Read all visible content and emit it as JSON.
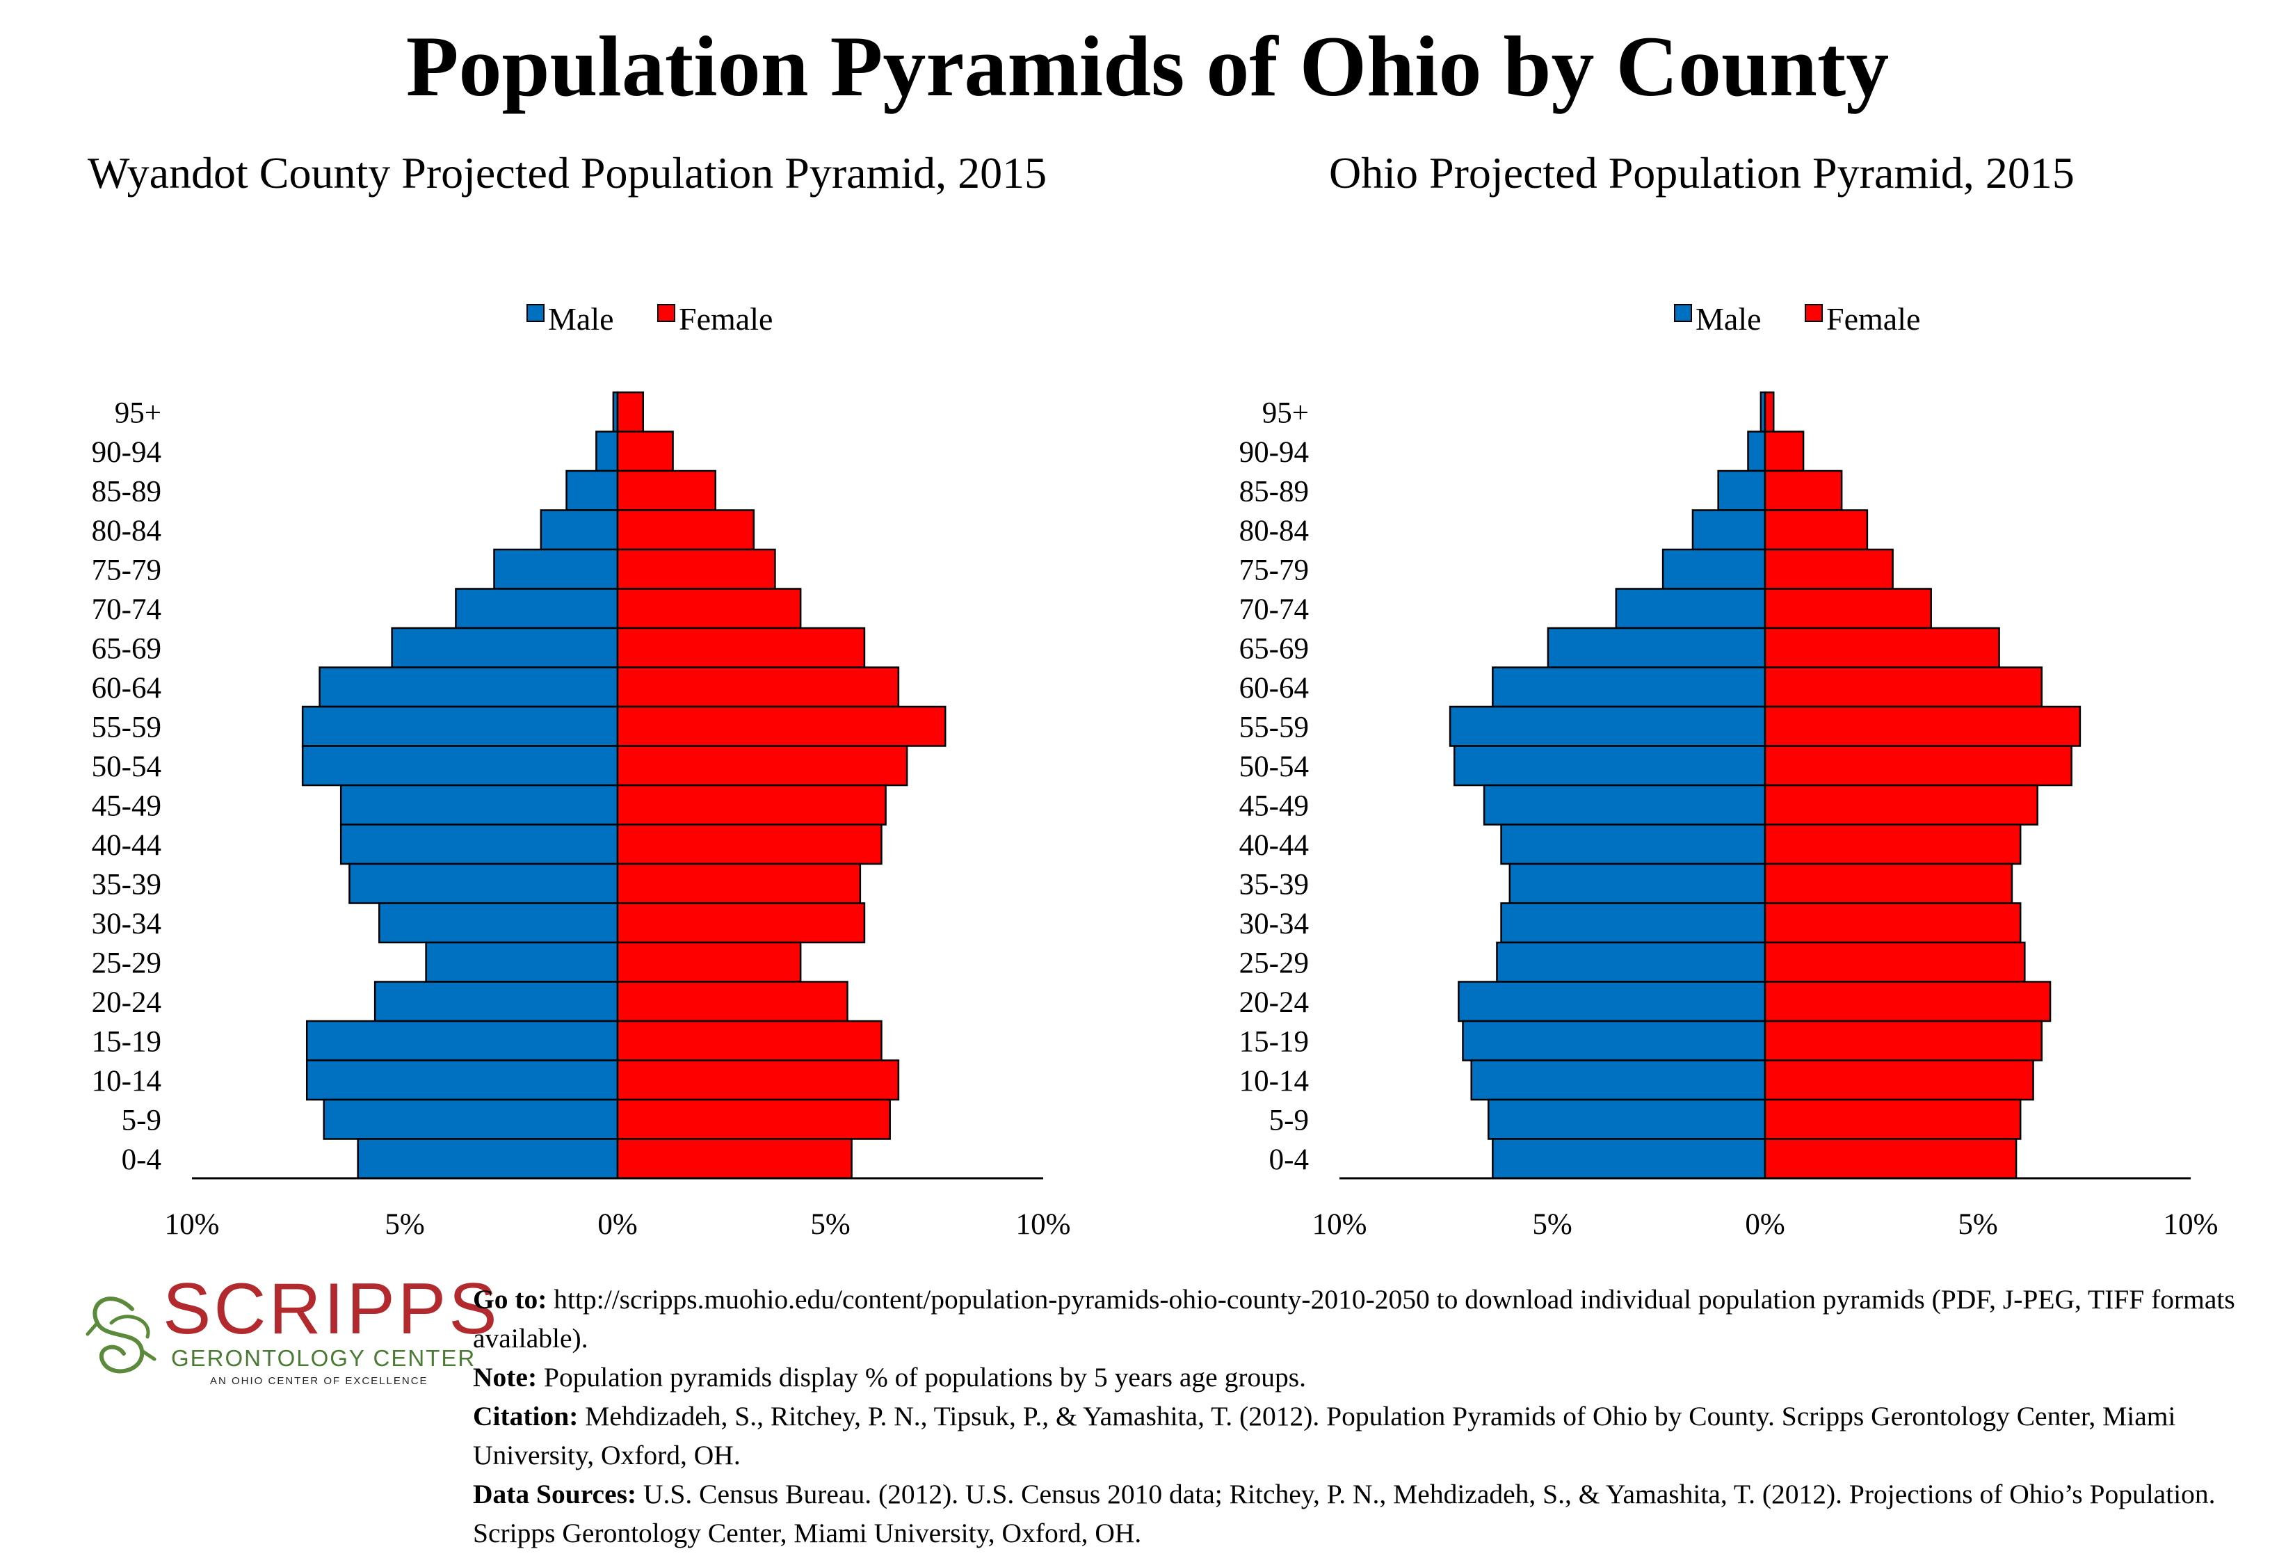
{
  "main_title": "Population Pyramids of Ohio by County",
  "legend": {
    "male": "Male",
    "female": "Female"
  },
  "colors": {
    "male": "#0070c0",
    "female": "#ff0000",
    "outline": "#000000"
  },
  "x_tick_labels": [
    "10%",
    "5%",
    "0%",
    "5%",
    "10%"
  ],
  "chart_data": [
    {
      "type": "bar",
      "orientation": "horizontal-pyramid",
      "title": "Wyandot County Projected Population Pyramid, 2015",
      "categories": [
        "95+",
        "90-94",
        "85-89",
        "80-84",
        "75-79",
        "70-74",
        "65-69",
        "60-64",
        "55-59",
        "50-54",
        "45-49",
        "40-44",
        "35-39",
        "30-34",
        "25-29",
        "20-24",
        "15-19",
        "10-14",
        "5-9",
        "0-4"
      ],
      "series": [
        {
          "name": "Male",
          "values": [
            0.1,
            0.5,
            1.2,
            1.8,
            2.9,
            3.8,
            5.3,
            7.0,
            7.4,
            7.4,
            6.5,
            6.5,
            6.3,
            5.6,
            4.5,
            5.7,
            7.3,
            7.3,
            6.9,
            6.1
          ]
        },
        {
          "name": "Female",
          "values": [
            0.6,
            1.3,
            2.3,
            3.2,
            3.7,
            4.3,
            5.8,
            6.6,
            7.7,
            6.8,
            6.3,
            6.2,
            5.7,
            5.8,
            4.3,
            5.4,
            6.2,
            6.6,
            6.4,
            5.5
          ]
        }
      ],
      "xlim": [
        -10,
        10
      ],
      "x_ticks": [
        -10,
        -5,
        0,
        5,
        10
      ],
      "legend_position": "top-center",
      "grid": false
    },
    {
      "type": "bar",
      "orientation": "horizontal-pyramid",
      "title": "Ohio Projected Population Pyramid, 2015",
      "categories": [
        "95+",
        "90-94",
        "85-89",
        "80-84",
        "75-79",
        "70-74",
        "65-69",
        "60-64",
        "55-59",
        "50-54",
        "45-49",
        "40-44",
        "35-39",
        "30-34",
        "25-29",
        "20-24",
        "15-19",
        "10-14",
        "5-9",
        "0-4"
      ],
      "series": [
        {
          "name": "Male",
          "values": [
            0.1,
            0.4,
            1.1,
            1.7,
            2.4,
            3.5,
            5.1,
            6.4,
            7.4,
            7.3,
            6.6,
            6.2,
            6.0,
            6.2,
            6.3,
            7.2,
            7.1,
            6.9,
            6.5,
            6.4
          ]
        },
        {
          "name": "Female",
          "values": [
            0.2,
            0.9,
            1.8,
            2.4,
            3.0,
            3.9,
            5.5,
            6.5,
            7.4,
            7.2,
            6.4,
            6.0,
            5.8,
            6.0,
            6.1,
            6.7,
            6.5,
            6.3,
            6.0,
            5.9
          ]
        }
      ],
      "xlim": [
        -10,
        10
      ],
      "x_ticks": [
        -10,
        -5,
        0,
        5,
        10
      ],
      "legend_position": "top-center",
      "grid": false
    }
  ],
  "footer": {
    "logo": {
      "word": "SCRIPPS",
      "sub": "GERONTOLOGY CENTER",
      "tag": "AN OHIO CENTER OF EXCELLENCE"
    },
    "goto_label": "Go to:",
    "goto_text": "http://scripps.muohio.edu/content/population-pyramids-ohio-county-2010-2050 to download individual population pyramids (PDF, J-PEG, TIFF formats available).",
    "note_label": "Note:",
    "note_text": "Population pyramids display % of populations by 5 years age groups.",
    "citation_label": "Citation:",
    "citation_text": "Mehdizadeh, S., Ritchey, P. N., Tipsuk, P., & Yamashita, T. (2012). Population Pyramids of Ohio by County. Scripps Gerontology Center, Miami University, Oxford, OH.",
    "sources_label": "Data Sources:",
    "sources_text": "U.S. Census Bureau. (2012). U.S. Census 2010 data; Ritchey, P. N., Mehdizadeh, S., & Yamashita, T. (2012). Projections of Ohio’s Population. Scripps Gerontology Center, Miami University, Oxford, OH."
  }
}
